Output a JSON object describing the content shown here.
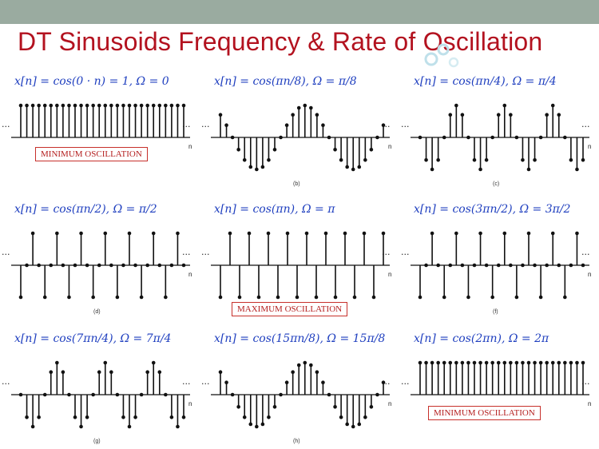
{
  "slide": {
    "title": "DT Sinusoids Frequency & Rate of Oscillation",
    "colors": {
      "title": "#b3121f",
      "top_bar": "#9aaba0",
      "equation": "#1f3fbf",
      "annotation_border": "#c7302b",
      "stem": "#111111"
    }
  },
  "panels": [
    {
      "equation": "x[n] = cos(0 · n) = 1, Ω = 0",
      "omega_over_pi": 0,
      "sublabel": "",
      "annotation": "MINIMUM OSCILLATION"
    },
    {
      "equation": "x[n] = cos(πn/8), Ω = π/8",
      "omega_over_pi": 0.125,
      "sublabel": "(b)",
      "annotation": ""
    },
    {
      "equation": "x[n] = cos(πn/4), Ω = π/4",
      "omega_over_pi": 0.25,
      "sublabel": "(c)",
      "annotation": ""
    },
    {
      "equation": "x[n] = cos(πn/2), Ω = π/2",
      "omega_over_pi": 0.5,
      "sublabel": "(d)",
      "annotation": ""
    },
    {
      "equation": "x[n] = cos(πn), Ω = π",
      "omega_over_pi": 1,
      "sublabel": "",
      "annotation": "MAXIMUM OSCILLATION"
    },
    {
      "equation": "x[n] = cos(3πn/2), Ω = 3π/2",
      "omega_over_pi": 1.5,
      "sublabel": "(f)",
      "annotation": ""
    },
    {
      "equation": "x[n] = cos(7πn/4), Ω = 7π/4",
      "omega_over_pi": 1.75,
      "sublabel": "(g)",
      "annotation": ""
    },
    {
      "equation": "x[n] = cos(15πn/8), Ω = 15π/8",
      "omega_over_pi": 1.875,
      "sublabel": "(h)",
      "annotation": ""
    },
    {
      "equation": "x[n] = cos(2πn), Ω = 2π",
      "omega_over_pi": 2,
      "sublabel": "",
      "annotation": "MINIMUM OSCILLATION"
    }
  ],
  "axis": {
    "n_label": "n",
    "ellipsis": "···"
  }
}
